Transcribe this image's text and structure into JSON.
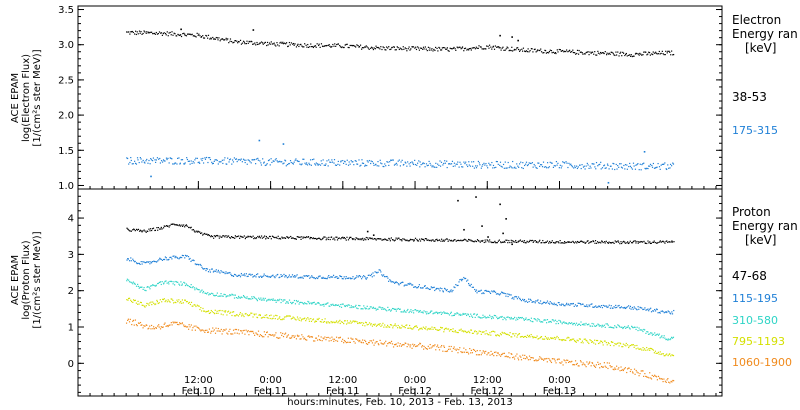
{
  "chart_data": [
    {
      "type": "scatter",
      "panel": "electron",
      "ylabel_lines": [
        "ACE EPAM",
        "log(Electron Flux)",
        "[1/(cm²s ster MeV)]"
      ],
      "legend_title_lines": [
        "Electron",
        "Energy ran",
        "[keV]"
      ],
      "ylim": [
        0.95,
        3.55
      ],
      "yticks": [
        "1.0",
        "1.5",
        "2.0",
        "2.5",
        "3.0",
        "3.5"
      ],
      "ytick_values": [
        1.0,
        1.5,
        2.0,
        2.5,
        3.0,
        3.5
      ],
      "series": [
        {
          "name": "38-53",
          "color": "#000000",
          "points": [
            [
              0,
              3.18
            ],
            [
              6,
              3.17
            ],
            [
              12,
              3.14
            ],
            [
              18,
              3.05
            ],
            [
              24,
              3.02
            ],
            [
              30,
              3.0
            ],
            [
              36,
              2.99
            ],
            [
              42,
              2.96
            ],
            [
              48,
              2.95
            ],
            [
              54,
              2.94
            ],
            [
              60,
              2.98
            ],
            [
              66,
              2.93
            ],
            [
              72,
              2.91
            ],
            [
              78,
              2.89
            ],
            [
              84,
              2.87
            ],
            [
              90,
              2.89
            ]
          ],
          "spread": 0.03,
          "glitches": [
            [
              9,
              3.23
            ],
            [
              21,
              3.22
            ],
            [
              62,
              3.14
            ],
            [
              64,
              3.12
            ],
            [
              65,
              3.07
            ]
          ]
        },
        {
          "name": "175-315",
          "color": "#1e7fd6",
          "points": [
            [
              0,
              1.36
            ],
            [
              12,
              1.36
            ],
            [
              24,
              1.34
            ],
            [
              36,
              1.33
            ],
            [
              48,
              1.32
            ],
            [
              60,
              1.3
            ],
            [
              72,
              1.3
            ],
            [
              84,
              1.28
            ],
            [
              90,
              1.28
            ]
          ],
          "spread": 0.05,
          "glitches": [
            [
              4,
              1.14
            ],
            [
              22,
              1.65
            ],
            [
              26,
              1.6
            ],
            [
              86,
              1.49
            ],
            [
              80,
              1.05
            ]
          ]
        }
      ]
    },
    {
      "type": "scatter",
      "panel": "proton",
      "ylabel_lines": [
        "ACE EPAM",
        "log(Proton Flux)",
        "[1/(cm²s ster MeV)]"
      ],
      "legend_title_lines": [
        "Proton",
        "Energy ran",
        "[keV]"
      ],
      "ylim": [
        -0.9,
        4.8
      ],
      "yticks": [
        "0",
        "1",
        "2",
        "3",
        "4"
      ],
      "ytick_values": [
        0,
        1,
        2,
        3,
        4
      ],
      "series": [
        {
          "name": "47-68",
          "color": "#000000",
          "points": [
            [
              0,
              3.7
            ],
            [
              3,
              3.65
            ],
            [
              6,
              3.75
            ],
            [
              8,
              3.85
            ],
            [
              10,
              3.8
            ],
            [
              12,
              3.6
            ],
            [
              14,
              3.5
            ],
            [
              24,
              3.48
            ],
            [
              36,
              3.45
            ],
            [
              48,
              3.42
            ],
            [
              60,
              3.38
            ],
            [
              72,
              3.36
            ],
            [
              84,
              3.35
            ],
            [
              90,
              3.35
            ]
          ],
          "spread": 0.04,
          "glitches": [
            [
              40,
              3.65
            ],
            [
              41,
              3.55
            ],
            [
              55,
              4.5
            ],
            [
              56,
              3.7
            ],
            [
              58,
              4.6
            ],
            [
              59,
              3.8
            ],
            [
              60,
              3.5
            ],
            [
              62,
              4.4
            ],
            [
              62.5,
              3.6
            ],
            [
              63,
              4.0
            ],
            [
              64,
              3.3
            ]
          ]
        },
        {
          "name": "115-195",
          "color": "#1e7fd6",
          "points": [
            [
              0,
              2.9
            ],
            [
              3,
              2.75
            ],
            [
              6,
              2.9
            ],
            [
              10,
              2.95
            ],
            [
              13,
              2.6
            ],
            [
              18,
              2.45
            ],
            [
              30,
              2.4
            ],
            [
              40,
              2.38
            ],
            [
              42,
              2.55
            ],
            [
              44,
              2.25
            ],
            [
              54,
              2.0
            ],
            [
              56,
              2.4
            ],
            [
              58,
              2.0
            ],
            [
              62,
              1.95
            ],
            [
              66,
              1.75
            ],
            [
              72,
              1.65
            ],
            [
              78,
              1.6
            ],
            [
              84,
              1.55
            ],
            [
              90,
              1.42
            ]
          ],
          "spread": 0.05,
          "glitches": []
        },
        {
          "name": "310-580",
          "color": "#2ed4c6",
          "points": [
            [
              0,
              2.3
            ],
            [
              3,
              2.05
            ],
            [
              6,
              2.25
            ],
            [
              10,
              2.2
            ],
            [
              13,
              1.95
            ],
            [
              24,
              1.75
            ],
            [
              36,
              1.6
            ],
            [
              48,
              1.45
            ],
            [
              60,
              1.3
            ],
            [
              72,
              1.15
            ],
            [
              84,
              1.0
            ],
            [
              90,
              0.7
            ]
          ],
          "spread": 0.05,
          "glitches": []
        },
        {
          "name": "795-1193",
          "color": "#d4e000",
          "points": [
            [
              0,
              1.8
            ],
            [
              3,
              1.6
            ],
            [
              6,
              1.75
            ],
            [
              10,
              1.7
            ],
            [
              13,
              1.45
            ],
            [
              24,
              1.3
            ],
            [
              36,
              1.15
            ],
            [
              48,
              1.0
            ],
            [
              60,
              0.85
            ],
            [
              72,
              0.7
            ],
            [
              84,
              0.5
            ],
            [
              90,
              0.25
            ]
          ],
          "spread": 0.06,
          "glitches": []
        },
        {
          "name": "1060-1900",
          "color": "#f08a1c",
          "points": [
            [
              0,
              1.2
            ],
            [
              4,
              1.0
            ],
            [
              8,
              1.1
            ],
            [
              12,
              0.95
            ],
            [
              24,
              0.8
            ],
            [
              36,
              0.65
            ],
            [
              48,
              0.5
            ],
            [
              60,
              0.3
            ],
            [
              72,
              0.05
            ],
            [
              80,
              -0.05
            ],
            [
              84,
              -0.2
            ],
            [
              90,
              -0.45
            ]
          ],
          "spread": 0.08,
          "glitches": []
        }
      ]
    }
  ],
  "x_axis": {
    "xlim_hours": [
      -8,
      99
    ],
    "data_end_hours": 91,
    "ticks": [
      {
        "hours": 12,
        "time": "12:00",
        "date": "Feb.10"
      },
      {
        "hours": 24,
        "time": "0:00",
        "date": "Feb.11"
      },
      {
        "hours": 36,
        "time": "12:00",
        "date": "Feb.11"
      },
      {
        "hours": 48,
        "time": "0:00",
        "date": "Feb.12"
      },
      {
        "hours": 60,
        "time": "12:00",
        "date": "Feb.12"
      },
      {
        "hours": 72,
        "time": "0:00",
        "date": "Feb.13"
      }
    ],
    "xlabel": "hours:minutes, Feb. 10, 2013 - Feb. 13, 2013"
  },
  "colors": {
    "axes": "#000000",
    "background": "#ffffff"
  }
}
